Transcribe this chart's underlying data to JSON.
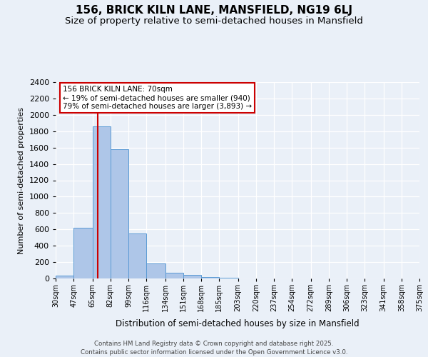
{
  "title": "156, BRICK KILN LANE, MANSFIELD, NG19 6LJ",
  "subtitle": "Size of property relative to semi-detached houses in Mansfield",
  "xlabel": "Distribution of semi-detached houses by size in Mansfield",
  "ylabel": "Number of semi-detached properties",
  "annotation_title": "156 BRICK KILN LANE: 70sqm",
  "annotation_line1": "← 19% of semi-detached houses are smaller (940)",
  "annotation_line2": "79% of semi-detached houses are larger (3,893) →",
  "footer_line1": "Contains HM Land Registry data © Crown copyright and database right 2025.",
  "footer_line2": "Contains public sector information licensed under the Open Government Licence v3.0.",
  "bin_labels": [
    "30sqm",
    "47sqm",
    "65sqm",
    "82sqm",
    "99sqm",
    "116sqm",
    "134sqm",
    "151sqm",
    "168sqm",
    "185sqm",
    "203sqm",
    "220sqm",
    "237sqm",
    "254sqm",
    "272sqm",
    "289sqm",
    "306sqm",
    "323sqm",
    "341sqm",
    "358sqm",
    "375sqm"
  ],
  "bin_edges": [
    30,
    47,
    65,
    82,
    99,
    116,
    134,
    151,
    168,
    185,
    203,
    220,
    237,
    254,
    272,
    289,
    306,
    323,
    341,
    358,
    375
  ],
  "bar_heights": [
    35,
    620,
    1855,
    1580,
    550,
    185,
    70,
    40,
    20,
    5,
    0,
    0,
    0,
    0,
    0,
    0,
    0,
    0,
    0,
    0
  ],
  "bar_color": "#aec6e8",
  "bar_edge_color": "#5b9bd5",
  "vline_x": 70,
  "vline_color": "#cc0000",
  "ylim": [
    0,
    2400
  ],
  "yticks": [
    0,
    200,
    400,
    600,
    800,
    1000,
    1200,
    1400,
    1600,
    1800,
    2000,
    2200,
    2400
  ],
  "bg_color": "#eaf0f8",
  "plot_bg_color": "#eaf0f8",
  "annotation_box_color": "#ffffff",
  "annotation_box_edge": "#cc0000",
  "title_fontsize": 11,
  "subtitle_fontsize": 9.5
}
